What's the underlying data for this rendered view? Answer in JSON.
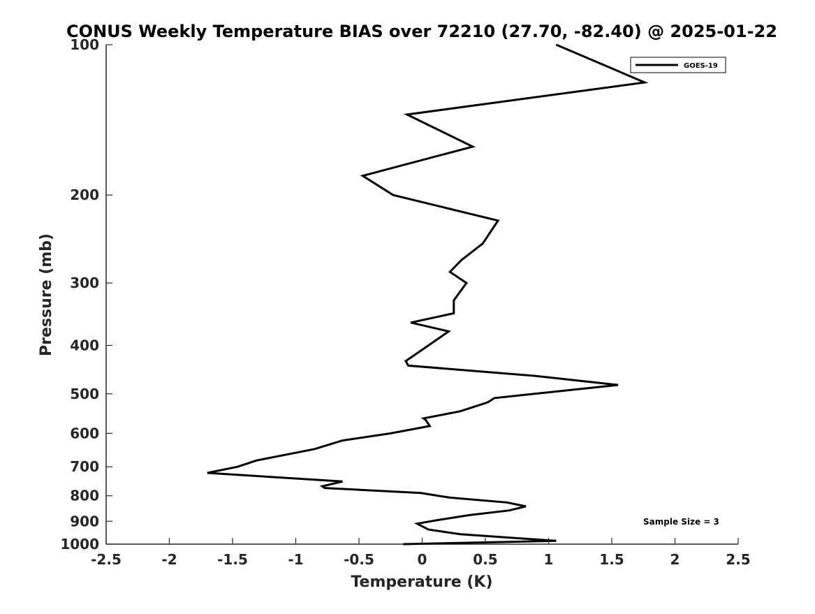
{
  "chart_data": {
    "type": "line",
    "title": "CONUS Weekly Temperature BIAS over 72210 (27.70, -82.40) @ 2025-01-22",
    "xlabel": "Temperature (K)",
    "ylabel": "Pressure (mb)",
    "xlim": [
      -2.5,
      2.5
    ],
    "ylim": [
      100,
      1000
    ],
    "y_scale": "log",
    "y_reversed": true,
    "grid": false,
    "x_ticks": [
      -2.5,
      -2,
      -1.5,
      -1,
      -0.5,
      0,
      0.5,
      1,
      1.5,
      2,
      2.5
    ],
    "x_tick_labels": [
      "-2.5",
      "-2",
      "-1.5",
      "-1",
      "-0.5",
      "0",
      "0.5",
      "1",
      "1.5",
      "2",
      "2.5"
    ],
    "y_ticks": [
      100,
      200,
      300,
      400,
      500,
      600,
      700,
      800,
      900,
      1000
    ],
    "y_tick_labels": [
      "100",
      "200",
      "300",
      "400",
      "500",
      "600",
      "700",
      "800",
      "900",
      "1000"
    ],
    "legend_position": "top-right",
    "annotation": "Sample Size = 3",
    "series": [
      {
        "name": "GOES-19",
        "color": "#000000",
        "points": [
          {
            "x": 1.06,
            "p": 985
          },
          {
            "x": 0.3,
            "p": 955
          },
          {
            "x": 0.05,
            "p": 935
          },
          {
            "x": -0.04,
            "p": 910
          },
          {
            "x": 0.12,
            "p": 895
          },
          {
            "x": 0.37,
            "p": 875
          },
          {
            "x": 0.69,
            "p": 856
          },
          {
            "x": 0.82,
            "p": 840
          },
          {
            "x": 0.67,
            "p": 825
          },
          {
            "x": 0.22,
            "p": 807
          },
          {
            "x": -0.01,
            "p": 790
          },
          {
            "x": -0.77,
            "p": 772
          },
          {
            "x": -0.79,
            "p": 766
          },
          {
            "x": -0.63,
            "p": 749
          },
          {
            "x": -1.7,
            "p": 720
          },
          {
            "x": -1.46,
            "p": 700
          },
          {
            "x": -1.31,
            "p": 680
          },
          {
            "x": -0.85,
            "p": 645
          },
          {
            "x": -0.63,
            "p": 620
          },
          {
            "x": -0.25,
            "p": 600
          },
          {
            "x": 0.06,
            "p": 580
          },
          {
            "x": 0.03,
            "p": 565
          },
          {
            "x": 0.01,
            "p": 560
          },
          {
            "x": 0.3,
            "p": 542
          },
          {
            "x": 0.52,
            "p": 520
          },
          {
            "x": 0.57,
            "p": 510
          },
          {
            "x": 1.55,
            "p": 480
          },
          {
            "x": 0.88,
            "p": 460
          },
          {
            "x": -0.11,
            "p": 439
          },
          {
            "x": -0.13,
            "p": 430
          },
          {
            "x": 0.05,
            "p": 400
          },
          {
            "x": 0.21,
            "p": 375
          },
          {
            "x": -0.09,
            "p": 360
          },
          {
            "x": 0.25,
            "p": 345
          },
          {
            "x": 0.25,
            "p": 325
          },
          {
            "x": 0.35,
            "p": 300
          },
          {
            "x": 0.22,
            "p": 285
          },
          {
            "x": 0.31,
            "p": 270
          },
          {
            "x": 0.48,
            "p": 250
          },
          {
            "x": 0.6,
            "p": 225
          },
          {
            "x": -0.23,
            "p": 200
          },
          {
            "x": -0.47,
            "p": 183
          },
          {
            "x": 0.4,
            "p": 160
          },
          {
            "x": -0.12,
            "p": 138
          },
          {
            "x": 1.76,
            "p": 119
          },
          {
            "x": 1.06,
            "p": 100
          }
        ]
      }
    ]
  }
}
